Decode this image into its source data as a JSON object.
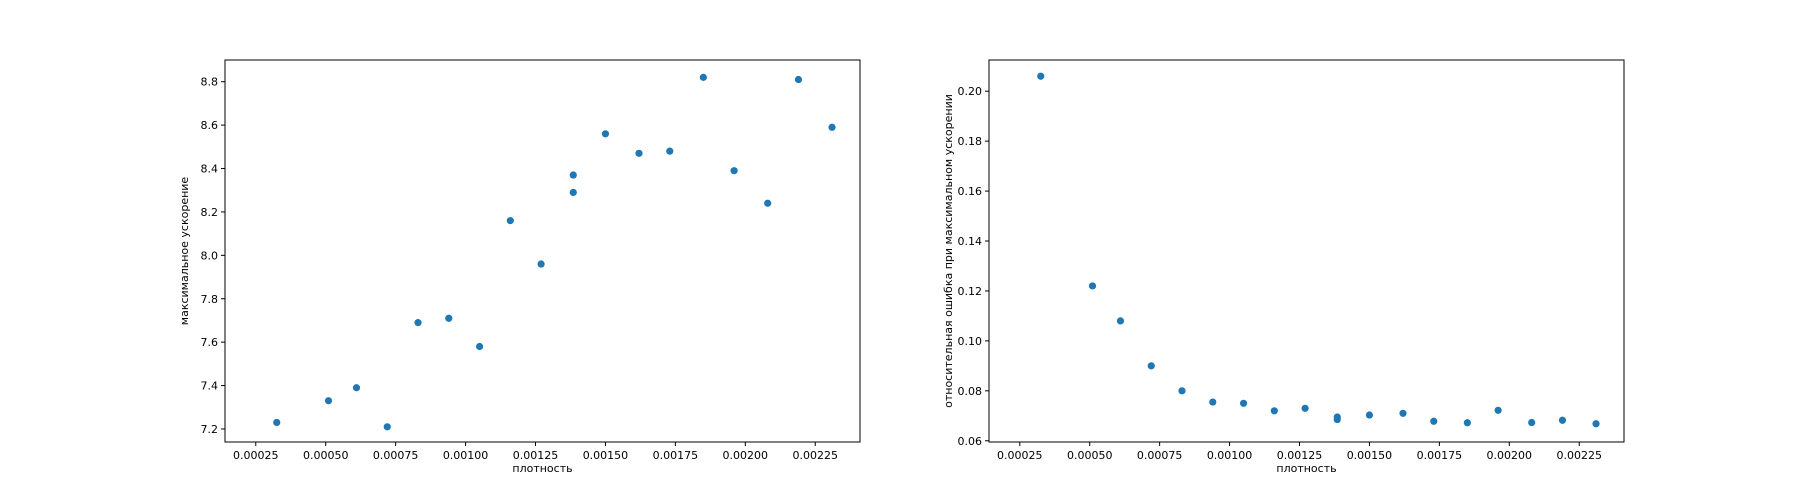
{
  "chart_data": [
    {
      "type": "scatter",
      "xlabel": "плотность",
      "ylabel": "максимальное ускорение",
      "xlim": [
        0.00014,
        0.00241
      ],
      "ylim": [
        7.14,
        8.9
      ],
      "xticks": [
        0.00025,
        0.0005,
        0.00075,
        0.001,
        0.00125,
        0.0015,
        0.00175,
        0.002,
        0.00225
      ],
      "xtick_labels": [
        "0.00025",
        "0.00050",
        "0.00075",
        "0.00100",
        "0.00125",
        "0.00150",
        "0.00175",
        "0.00200",
        "0.00225"
      ],
      "yticks": [
        7.2,
        7.4,
        7.6,
        7.8,
        8.0,
        8.2,
        8.4,
        8.6,
        8.8
      ],
      "ytick_labels": [
        "7.2",
        "7.4",
        "7.6",
        "7.8",
        "8.0",
        "8.2",
        "8.4",
        "8.6",
        "8.8"
      ],
      "grid": false,
      "marker_color": "#1f77b4",
      "series": [
        {
          "x": [
            0.000325,
            0.00051,
            0.00061,
            0.00072,
            0.00083,
            0.00094,
            0.00105,
            0.00116,
            0.00127,
            0.001385,
            0.001385,
            0.0015,
            0.00162,
            0.00173,
            0.00185,
            0.00196,
            0.00208,
            0.00219,
            0.00231
          ],
          "y": [
            7.23,
            7.33,
            7.39,
            7.21,
            7.69,
            7.71,
            7.58,
            8.16,
            7.96,
            8.29,
            8.37,
            8.56,
            8.47,
            8.48,
            8.82,
            8.39,
            8.24,
            8.81,
            8.59
          ]
        }
      ]
    },
    {
      "type": "scatter",
      "xlabel": "плотность",
      "ylabel": "относительная ошибка при максимальном ускорении",
      "xlim": [
        0.00014,
        0.00241
      ],
      "ylim": [
        0.0595,
        0.2125
      ],
      "xticks": [
        0.00025,
        0.0005,
        0.00075,
        0.001,
        0.00125,
        0.0015,
        0.00175,
        0.002,
        0.00225
      ],
      "xtick_labels": [
        "0.00025",
        "0.00050",
        "0.00075",
        "0.00100",
        "0.00125",
        "0.00150",
        "0.00175",
        "0.00200",
        "0.00225"
      ],
      "yticks": [
        0.06,
        0.08,
        0.1,
        0.12,
        0.14,
        0.16,
        0.18,
        0.2
      ],
      "ytick_labels": [
        "0.06",
        "0.08",
        "0.10",
        "0.12",
        "0.14",
        "0.16",
        "0.18",
        "0.20"
      ],
      "grid": false,
      "marker_color": "#1f77b4",
      "series": [
        {
          "x": [
            0.000325,
            0.00051,
            0.00061,
            0.00072,
            0.00083,
            0.00094,
            0.00105,
            0.00116,
            0.00127,
            0.001385,
            0.001385,
            0.0015,
            0.00162,
            0.00173,
            0.00185,
            0.00196,
            0.00208,
            0.00219,
            0.00231
          ],
          "y": [
            0.206,
            0.122,
            0.108,
            0.09,
            0.08,
            0.0755,
            0.075,
            0.072,
            0.073,
            0.0685,
            0.0695,
            0.0703,
            0.071,
            0.0678,
            0.0672,
            0.0722,
            0.0673,
            0.0682,
            0.0668
          ]
        }
      ]
    }
  ]
}
